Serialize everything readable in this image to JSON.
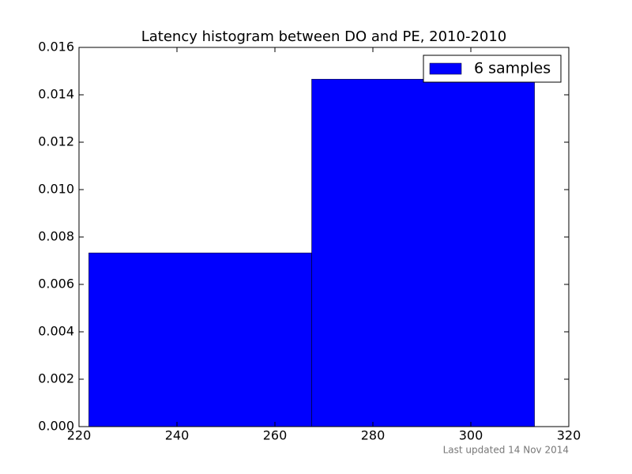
{
  "chart_data": {
    "type": "histogram",
    "title": "Latency histogram between DO and PE, 2010-2010",
    "bins": [
      222,
      267.5,
      313
    ],
    "series": [
      {
        "name": "6 samples",
        "color": "#0000ff",
        "values": [
          0.00733,
          0.01466
        ]
      }
    ],
    "xlim": [
      220,
      320
    ],
    "xticks": [
      220,
      240,
      260,
      280,
      300,
      320
    ],
    "ylim": [
      0,
      0.016
    ],
    "yticks": [
      {
        "value": 0,
        "label": "0.000"
      },
      {
        "value": 0.002,
        "label": "0.002"
      },
      {
        "value": 0.004,
        "label": "0.004"
      },
      {
        "value": 0.006,
        "label": "0.006"
      },
      {
        "value": 0.008,
        "label": "0.008"
      },
      {
        "value": 0.01,
        "label": "0.010"
      },
      {
        "value": 0.012,
        "label": "0.012"
      },
      {
        "value": 0.014,
        "label": "0.014"
      },
      {
        "value": 0.016,
        "label": "0.016"
      }
    ],
    "legend": "upper right",
    "footer": "Last updated 14 Nov 2014"
  }
}
